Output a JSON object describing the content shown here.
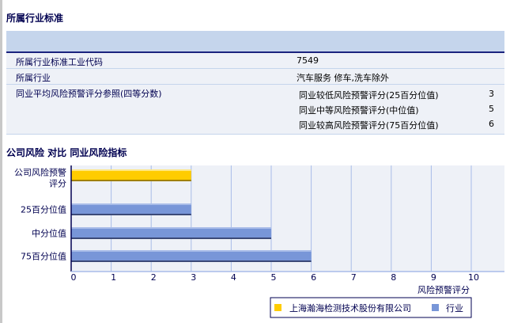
{
  "section1_title": "所属行业标准",
  "table": {
    "code_label": "所属行业标准工业代码",
    "code_value": "7549",
    "industry_label": "所属行业",
    "industry_value": "汽车服务 修车,洗车除外",
    "ref_label": "同业平均风险预警评分参照(四等分数)",
    "refs": [
      {
        "label": "同业较低风险预警评分(25百分位值)",
        "value": "3"
      },
      {
        "label": "同业中等风险预警评分(中位值)",
        "value": "5"
      },
      {
        "label": "同业较高风险预警评分(75百分位值)",
        "value": "6"
      }
    ]
  },
  "section2_title": "公司风险 对比 同业风险指标",
  "chart_data": {
    "type": "bar",
    "orientation": "horizontal",
    "categories": [
      "公司风险预警评分",
      "25百分位值",
      "中分位值",
      "75百分位值"
    ],
    "series": [
      {
        "name": "上海瀚海检测技术股份有限公司",
        "color": "#ffcc00",
        "values": [
          3,
          null,
          null,
          null
        ]
      },
      {
        "name": "行业",
        "color": "#7896d8",
        "values": [
          null,
          3,
          5,
          6
        ]
      }
    ],
    "xlabel": "风险预警评分",
    "xlim": [
      0,
      10.85
    ],
    "xticks": [
      "0",
      "1",
      "2",
      "3",
      "4",
      "5",
      "6",
      "7",
      "8",
      "9",
      "10"
    ],
    "grid": true,
    "legend": "bottom-right"
  }
}
